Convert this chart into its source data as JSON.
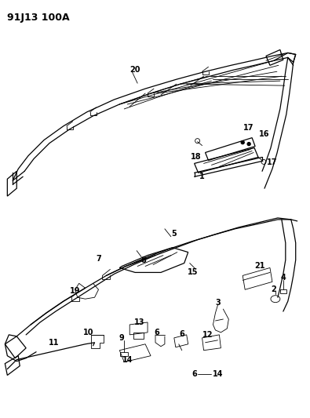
{
  "diagram_id": "91J13 100A",
  "background_color": "#ffffff",
  "line_color": "#000000",
  "figsize": [
    3.95,
    5.33
  ],
  "dpi": 100,
  "title_text": "91J13 100A",
  "title_fontsize": 9,
  "title_fontweight": "bold"
}
